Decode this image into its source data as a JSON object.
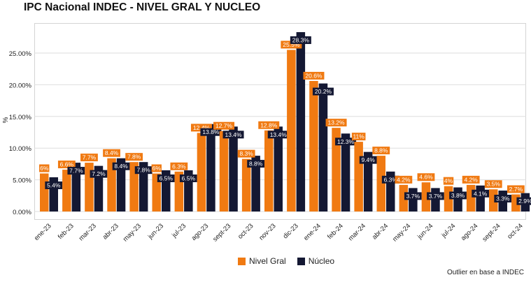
{
  "title": "IPC Nacional INDEC - NIVEL GRAL Y NUCLEO",
  "footnote": "Outlier en base a INDEC",
  "colors": {
    "general": "#f07a12",
    "nucleo": "#141833",
    "grid": "#dedede"
  },
  "chart_data": {
    "type": "bar",
    "title": "IPC Nacional INDEC - NIVEL GRAL Y NUCLEO",
    "ylabel": "%",
    "xlabel": "",
    "ylim": [
      0,
      30
    ],
    "yticks": [
      "0.00%",
      "5.00%",
      "10.00%",
      "15.00%",
      "20.00%",
      "25.00%"
    ],
    "grid": true,
    "legend": "bottom",
    "categories": [
      "ene-23",
      "feb-23",
      "mar-23",
      "abr-23",
      "may-23",
      "jun-23",
      "jul-23",
      "ago-23",
      "sept-23",
      "oct-23",
      "nov-23",
      "dic-23",
      "ene-24",
      "feb-24",
      "mar-24",
      "abr-24",
      "may-24",
      "jun-24",
      "jul-24",
      "ago-24",
      "sept-24",
      "oct-24"
    ],
    "series": [
      {
        "name": "Nivel Gral",
        "values": [
          6.0,
          6.6,
          7.7,
          8.4,
          7.8,
          6.0,
          6.3,
          12.4,
          12.7,
          8.3,
          12.8,
          25.5,
          20.6,
          13.2,
          11.0,
          8.8,
          4.2,
          4.6,
          4.0,
          4.2,
          3.5,
          2.7
        ],
        "labels": [
          "6%",
          "6.6%",
          "7.7%",
          "8.4%",
          "7.8%",
          "6%",
          "6.3%",
          "12.4%",
          "12.7%",
          "8.3%",
          "12.8%",
          "25.5%",
          "20.6%",
          "13.2%",
          "11%",
          "8.8%",
          "4.2%",
          "4.6%",
          "4%",
          "4.2%",
          "3.5%",
          "2.7%"
        ]
      },
      {
        "name": "Núcleo",
        "values": [
          5.4,
          7.7,
          7.2,
          8.4,
          7.8,
          6.5,
          6.5,
          13.8,
          13.4,
          8.8,
          13.4,
          28.3,
          20.2,
          12.3,
          9.4,
          6.3,
          3.7,
          3.7,
          3.8,
          4.1,
          3.3,
          2.9
        ],
        "labels": [
          "5.4%",
          "7.7%",
          "7.2%",
          "8.4%",
          "7.8%",
          "6.5%",
          "6.5%",
          "13.8%",
          "13.4%",
          "8.8%",
          "13.4%",
          "28.3%",
          "20.2%",
          "12.3%",
          "9.4%",
          "6.3%",
          "3.7%",
          "3.7%",
          "3.8%",
          "4.1%",
          "3.3%",
          "2.9%"
        ]
      }
    ]
  }
}
